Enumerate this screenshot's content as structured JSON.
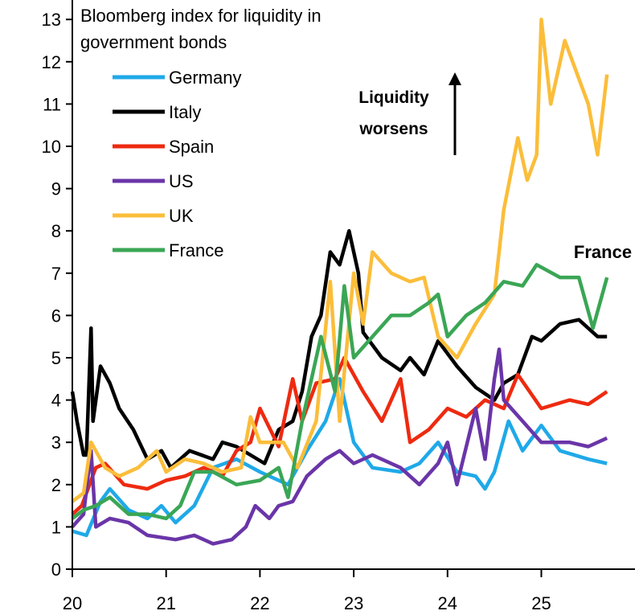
{
  "chart_data": {
    "type": "line",
    "title": "Bloomberg index for liquidity in government bonds",
    "title_lines": [
      "Bloomberg index for liquidity in",
      "government bonds"
    ],
    "xlabel": "",
    "ylabel": "",
    "xlim": [
      20,
      25.8
    ],
    "ylim": [
      0,
      13
    ],
    "xticks": [
      "20",
      "21",
      "22",
      "23",
      "24",
      "25"
    ],
    "yticks": [
      "0",
      "1",
      "2",
      "3",
      "4",
      "5",
      "6",
      "7",
      "8",
      "9",
      "10",
      "11",
      "12",
      "13"
    ],
    "grid": false,
    "legend_position": "top-left",
    "annotation": {
      "lines": [
        "Liquidity",
        "worsens"
      ],
      "arrow": "up"
    },
    "end_label": {
      "text": "France",
      "color": "#3aa655"
    },
    "series": [
      {
        "name": "Germany",
        "color": "#1fa9e8",
        "x": [
          20.0,
          20.15,
          20.3,
          20.4,
          20.6,
          20.8,
          20.95,
          21.1,
          21.3,
          21.5,
          21.75,
          22.0,
          22.3,
          22.5,
          22.7,
          22.85,
          23.0,
          23.2,
          23.5,
          23.7,
          23.9,
          24.1,
          24.3,
          24.4,
          24.5,
          24.65,
          24.8,
          25.0,
          25.2,
          25.5,
          25.7
        ],
        "y": [
          0.9,
          0.8,
          1.6,
          1.9,
          1.4,
          1.2,
          1.5,
          1.1,
          1.5,
          2.4,
          2.6,
          2.3,
          2.0,
          2.8,
          3.5,
          4.5,
          3.0,
          2.4,
          2.3,
          2.5,
          3.0,
          2.3,
          2.2,
          1.9,
          2.3,
          3.5,
          2.8,
          3.4,
          2.8,
          2.6,
          2.5
        ]
      },
      {
        "name": "Italy",
        "color": "#000000",
        "x": [
          20.0,
          20.05,
          20.12,
          20.15,
          20.2,
          20.22,
          20.3,
          20.4,
          20.5,
          20.65,
          20.8,
          20.95,
          21.05,
          21.25,
          21.5,
          21.6,
          21.75,
          22.05,
          22.2,
          22.35,
          22.45,
          22.55,
          22.65,
          22.75,
          22.85,
          22.95,
          23.05,
          23.1,
          23.3,
          23.5,
          23.6,
          23.75,
          23.9,
          24.1,
          24.3,
          24.5,
          24.6,
          24.75,
          24.9,
          25.0,
          25.2,
          25.4,
          25.6,
          25.7
        ],
        "y": [
          4.2,
          3.5,
          2.7,
          2.7,
          5.7,
          3.5,
          4.8,
          4.4,
          3.8,
          3.3,
          2.6,
          2.8,
          2.4,
          2.8,
          2.6,
          3.0,
          2.9,
          2.5,
          3.3,
          3.5,
          4.2,
          5.5,
          6.0,
          7.5,
          7.2,
          8.0,
          7.0,
          5.6,
          5.0,
          4.7,
          5.0,
          4.6,
          5.4,
          4.8,
          4.3,
          4.0,
          4.4,
          4.6,
          5.5,
          5.4,
          5.8,
          5.9,
          5.5,
          5.5
        ]
      },
      {
        "name": "Spain",
        "color": "#ee2a10",
        "x": [
          20.0,
          20.1,
          20.25,
          20.35,
          20.55,
          20.8,
          21.0,
          21.2,
          21.4,
          21.6,
          21.75,
          21.9,
          22.0,
          22.2,
          22.35,
          22.45,
          22.6,
          22.8,
          22.9,
          23.1,
          23.3,
          23.5,
          23.6,
          23.8,
          24.0,
          24.2,
          24.4,
          24.6,
          24.75,
          25.0,
          25.3,
          25.5,
          25.7
        ],
        "y": [
          1.3,
          1.5,
          2.4,
          2.5,
          2.0,
          1.9,
          2.1,
          2.2,
          2.4,
          2.2,
          2.8,
          3.0,
          3.8,
          2.9,
          4.5,
          3.5,
          4.4,
          4.5,
          5.0,
          4.2,
          3.5,
          4.5,
          3.0,
          3.3,
          3.8,
          3.6,
          4.0,
          3.8,
          4.6,
          3.8,
          4.0,
          3.9,
          4.2
        ]
      },
      {
        "name": "US",
        "color": "#6a35a8",
        "x": [
          20.0,
          20.12,
          20.2,
          20.25,
          20.4,
          20.6,
          20.8,
          21.1,
          21.3,
          21.5,
          21.7,
          21.85,
          21.95,
          22.1,
          22.2,
          22.35,
          22.5,
          22.7,
          22.85,
          23.0,
          23.2,
          23.5,
          23.7,
          23.9,
          24.0,
          24.1,
          24.3,
          24.4,
          24.5,
          24.55,
          24.6,
          24.8,
          25.0,
          25.3,
          25.5,
          25.7
        ],
        "y": [
          1.0,
          1.3,
          2.8,
          1.0,
          1.2,
          1.1,
          0.8,
          0.7,
          0.8,
          0.6,
          0.7,
          1.0,
          1.5,
          1.2,
          1.5,
          1.6,
          2.2,
          2.6,
          2.8,
          2.5,
          2.7,
          2.4,
          2.0,
          2.5,
          3.0,
          2.0,
          3.8,
          2.6,
          4.5,
          5.2,
          4.0,
          3.5,
          3.0,
          3.0,
          2.9,
          3.1
        ]
      },
      {
        "name": "UK",
        "color": "#fbbd3a",
        "x": [
          20.0,
          20.12,
          20.2,
          20.35,
          20.5,
          20.7,
          20.9,
          21.0,
          21.2,
          21.4,
          21.6,
          21.8,
          21.9,
          22.0,
          22.25,
          22.4,
          22.6,
          22.75,
          22.85,
          23.0,
          23.1,
          23.2,
          23.4,
          23.6,
          23.75,
          23.9,
          24.1,
          24.3,
          24.5,
          24.6,
          24.75,
          24.85,
          24.95,
          25.0,
          25.1,
          25.25,
          25.4,
          25.5,
          25.6,
          25.7
        ],
        "y": [
          1.6,
          1.8,
          3.0,
          2.4,
          2.2,
          2.4,
          2.8,
          2.3,
          2.6,
          2.5,
          2.3,
          2.4,
          3.6,
          3.0,
          3.0,
          2.4,
          3.5,
          6.8,
          3.5,
          7.0,
          5.8,
          7.5,
          7.0,
          6.8,
          6.9,
          5.5,
          5.0,
          5.8,
          6.5,
          8.5,
          10.2,
          9.2,
          9.8,
          13.0,
          11.0,
          12.5,
          11.6,
          11.0,
          9.8,
          11.7
        ]
      },
      {
        "name": "France",
        "color": "#3aa655",
        "x": [
          20.0,
          20.12,
          20.25,
          20.4,
          20.6,
          20.8,
          21.0,
          21.15,
          21.3,
          21.5,
          21.75,
          22.0,
          22.2,
          22.3,
          22.45,
          22.55,
          22.65,
          22.8,
          22.9,
          23.0,
          23.2,
          23.4,
          23.6,
          23.8,
          23.9,
          24.0,
          24.2,
          24.4,
          24.6,
          24.8,
          24.95,
          25.2,
          25.4,
          25.55,
          25.7
        ],
        "y": [
          1.2,
          1.4,
          1.5,
          1.7,
          1.3,
          1.3,
          1.2,
          1.5,
          2.3,
          2.3,
          2.0,
          2.1,
          2.4,
          1.7,
          3.5,
          4.5,
          5.5,
          4.2,
          6.7,
          5.0,
          5.5,
          6.0,
          6.0,
          6.3,
          6.5,
          5.5,
          6.0,
          6.3,
          6.8,
          6.7,
          7.2,
          6.9,
          6.9,
          5.7,
          6.9
        ]
      }
    ]
  }
}
